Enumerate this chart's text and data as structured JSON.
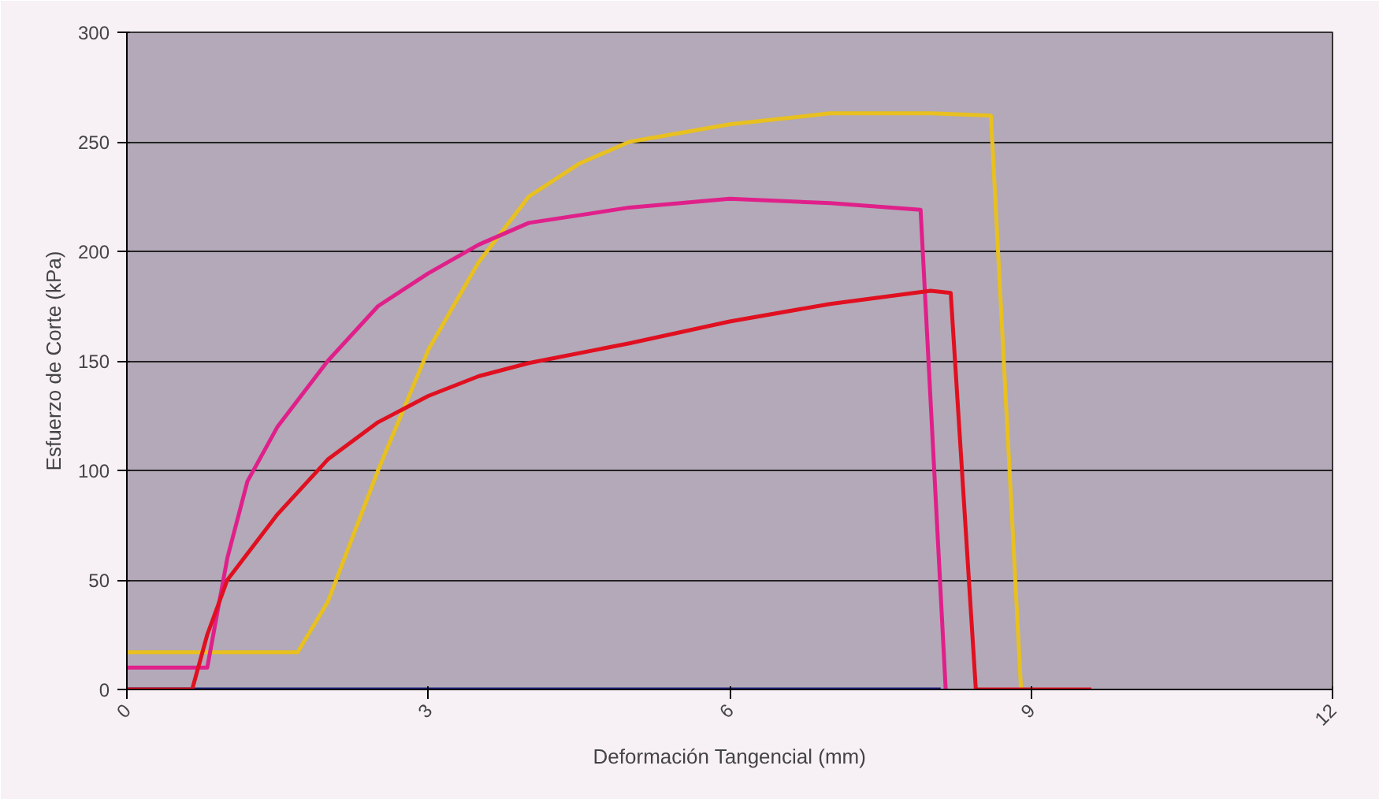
{
  "chart_data": {
    "type": "line",
    "xlabel": "Deformación Tangencial (mm)",
    "ylabel": "Esfuerzo de Corte (kPa)",
    "xlim": [
      0,
      12
    ],
    "xticks": [
      0,
      3,
      6,
      9,
      12
    ],
    "ylim": [
      0,
      300
    ],
    "yticks": [
      0,
      50,
      100,
      150,
      200,
      250,
      300
    ],
    "grid": "y",
    "marker": "none",
    "line_style": "solid",
    "series": [
      {
        "color": "#1c2080",
        "x": [
          0,
          8.1
        ],
        "values": [
          0,
          0
        ]
      },
      {
        "color": "#e8c020",
        "x": [
          0,
          1.7,
          2.0,
          2.5,
          3.0,
          3.5,
          4.0,
          4.5,
          5.0,
          6.0,
          7.0,
          8.0,
          8.6,
          8.9
        ],
        "values": [
          17,
          17,
          40,
          100,
          155,
          195,
          225,
          240,
          250,
          258,
          263,
          263,
          262,
          0
        ]
      },
      {
        "color": "#e0208a",
        "x": [
          0,
          0.8,
          1.0,
          1.2,
          1.5,
          2.0,
          2.5,
          3.0,
          3.5,
          4.0,
          5.0,
          6.0,
          7.0,
          7.9,
          8.15
        ],
        "values": [
          10,
          10,
          60,
          95,
          120,
          150,
          175,
          190,
          203,
          213,
          220,
          224,
          222,
          219,
          0
        ]
      },
      {
        "color": "#e01020",
        "x": [
          0,
          0.65,
          0.8,
          1.0,
          1.5,
          2.0,
          2.5,
          3.0,
          3.5,
          4.0,
          5.0,
          6.0,
          7.0,
          8.0,
          8.2,
          8.45,
          9.6
        ],
        "values": [
          0,
          0,
          25,
          50,
          80,
          105,
          122,
          134,
          143,
          149,
          158,
          168,
          176,
          182,
          181,
          0,
          0
        ]
      }
    ]
  }
}
